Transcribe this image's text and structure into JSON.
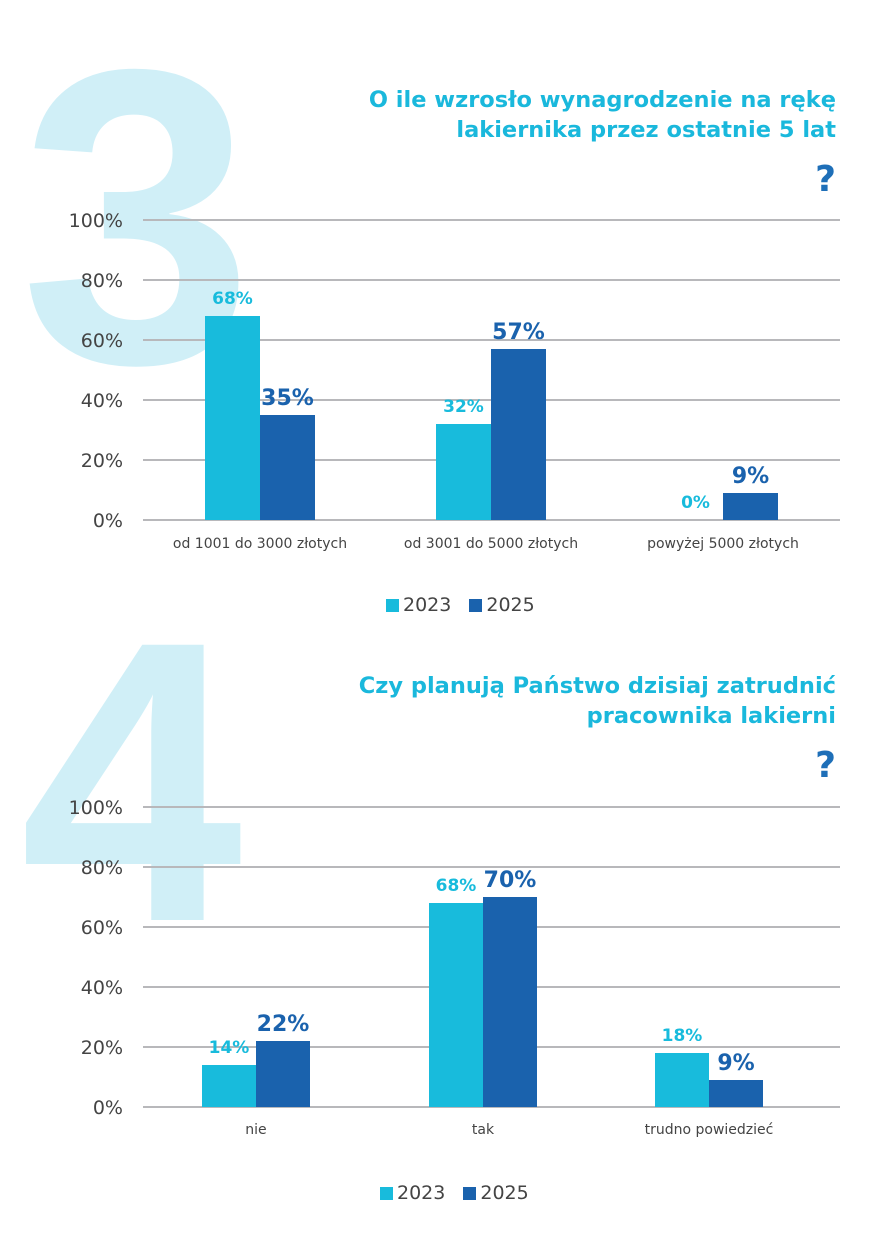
{
  "colors": {
    "y2023": "#18bbdc",
    "y2025": "#1a62ad",
    "grid": "#b8b8bb",
    "axis_text": "#444444",
    "bignum": "#d0eff7"
  },
  "sections": [
    {
      "number": "3",
      "question_lines": [
        "O ile wzrosło wynagrodzenie na rękę",
        "lakiernika przez ostatnie 5 lat"
      ],
      "question_mark": "?",
      "legend": [
        "2023",
        "2025"
      ]
    },
    {
      "number": "4",
      "question_lines": [
        "Czy planują Państwo dzisiaj zatrudnić",
        "pracownika lakierni"
      ],
      "question_mark": "?",
      "legend": [
        "2023",
        "2025"
      ]
    }
  ],
  "chart_data": [
    {
      "type": "bar",
      "title": "O ile wzrosło wynagrodzenie na rękę lakiernika przez ostatnie 5 lat?",
      "categories": [
        "od 1001 do 3000 złotych",
        "od 3001 do 5000 złotych",
        "powyżej 5000 złotych"
      ],
      "series": [
        {
          "name": "2023",
          "values": [
            68,
            32,
            0
          ],
          "labels": [
            "68%",
            "32%",
            "0%"
          ]
        },
        {
          "name": "2025",
          "values": [
            35,
            57,
            9
          ],
          "labels": [
            "35%",
            "57%",
            "9%"
          ]
        }
      ],
      "yticks": [
        "0%",
        "20%",
        "40%",
        "60%",
        "80%",
        "100%"
      ],
      "ylim": [
        0,
        100
      ],
      "xlabel": "",
      "ylabel": "",
      "grid": true,
      "legend_position": "bottom-center"
    },
    {
      "type": "bar",
      "title": "Czy planują Państwo dzisiaj zatrudnić pracownika lakierni?",
      "categories": [
        "nie",
        "tak",
        "trudno powiedzieć"
      ],
      "series": [
        {
          "name": "2023",
          "values": [
            14,
            68,
            18
          ],
          "labels": [
            "14%",
            "68%",
            "18%"
          ]
        },
        {
          "name": "2025",
          "values": [
            22,
            70,
            9
          ],
          "labels": [
            "22%",
            "70%",
            "9%"
          ]
        }
      ],
      "yticks": [
        "0%",
        "20%",
        "40%",
        "60%",
        "80%",
        "100%"
      ],
      "ylim": [
        0,
        100
      ],
      "xlabel": "",
      "ylabel": "",
      "grid": true,
      "legend_position": "bottom-center"
    }
  ]
}
